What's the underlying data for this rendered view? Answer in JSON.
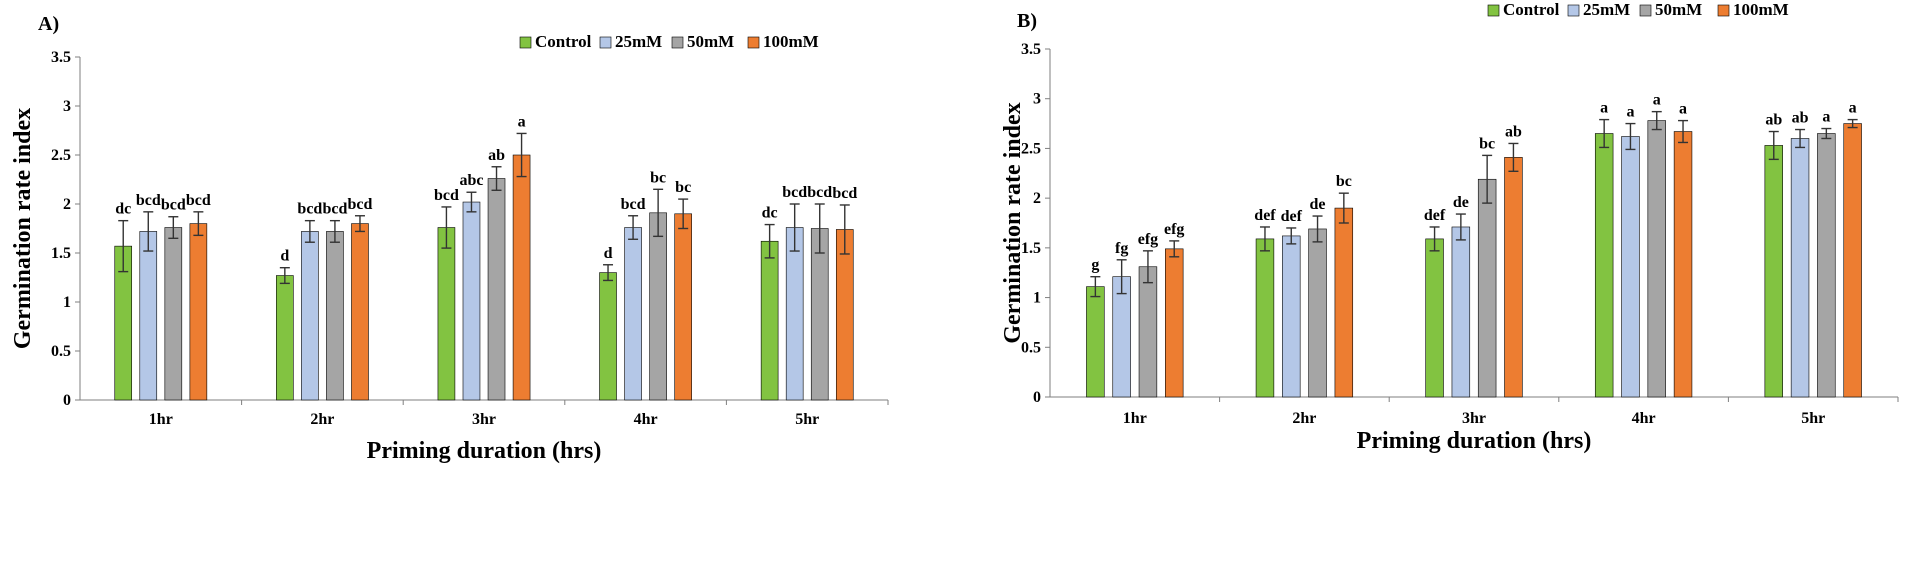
{
  "chart_data": [
    {
      "type": "bar",
      "panel": "A)",
      "categories": [
        "1hr",
        "2hr",
        "3hr",
        "4hr",
        "5hr"
      ],
      "xlabel": "Priming duration (hrs)",
      "ylabel": "Germination  rate index",
      "ylim": [
        0,
        3.5
      ],
      "yticks": [
        "0",
        "0.5",
        "1",
        "1.5",
        "2",
        "2.5",
        "3",
        "3.5"
      ],
      "legend_position": "top-right",
      "grid": false,
      "series": [
        {
          "name": "Control",
          "color": "#82c341",
          "values": [
            1.57,
            1.27,
            1.76,
            1.3,
            1.62
          ],
          "errors": [
            0.26,
            0.08,
            0.21,
            0.08,
            0.17
          ],
          "labels": [
            "dc",
            "d",
            "bcd",
            "d",
            "dc"
          ]
        },
        {
          "name": "25mM",
          "color": "#b4c7e7",
          "values": [
            1.72,
            1.72,
            2.02,
            1.76,
            1.76
          ],
          "errors": [
            0.2,
            0.11,
            0.1,
            0.12,
            0.24
          ],
          "labels": [
            "bcd",
            "bcd",
            "abc",
            "bcd",
            "bcd"
          ]
        },
        {
          "name": "50mM",
          "color": "#a5a5a5",
          "values": [
            1.76,
            1.72,
            2.26,
            1.91,
            1.75
          ],
          "errors": [
            0.11,
            0.11,
            0.12,
            0.24,
            0.25
          ],
          "labels": [
            "bcd",
            "bcd",
            "ab",
            "bc",
            "bcd"
          ]
        },
        {
          "name": "100mM",
          "color": "#ed7d31",
          "values": [
            1.8,
            1.8,
            2.5,
            1.9,
            1.74
          ],
          "errors": [
            0.12,
            0.08,
            0.22,
            0.15,
            0.25
          ],
          "labels": [
            "bcd",
            "bcd",
            "a",
            "bc",
            "bcd"
          ]
        }
      ]
    },
    {
      "type": "bar",
      "panel": "B)",
      "categories": [
        "1hr",
        "2hr",
        "3hr",
        "4hr",
        "5hr"
      ],
      "xlabel": "Priming duration (hrs)",
      "ylabel": "Germination  rate index",
      "ylim": [
        0,
        3.5
      ],
      "yticks": [
        "0",
        "0.5",
        "1",
        "1.5",
        "2",
        "2.5",
        "3",
        "3.5"
      ],
      "legend_position": "top-right",
      "grid": false,
      "series": [
        {
          "name": "Control",
          "color": "#82c341",
          "values": [
            1.11,
            1.59,
            1.59,
            2.65,
            2.53
          ],
          "errors": [
            0.1,
            0.12,
            0.12,
            0.14,
            0.14
          ],
          "labels": [
            "g",
            "def",
            "def",
            "a",
            "ab"
          ]
        },
        {
          "name": "25mM",
          "color": "#b4c7e7",
          "values": [
            1.21,
            1.62,
            1.71,
            2.62,
            2.6
          ],
          "errors": [
            0.17,
            0.08,
            0.13,
            0.13,
            0.09
          ],
          "labels": [
            "fg",
            "def",
            "de",
            "a",
            "ab"
          ]
        },
        {
          "name": "50mM",
          "color": "#a5a5a5",
          "values": [
            1.31,
            1.69,
            2.19,
            2.78,
            2.65
          ],
          "errors": [
            0.16,
            0.13,
            0.24,
            0.09,
            0.05
          ],
          "labels": [
            "efg",
            "de",
            "bc",
            "a",
            "a"
          ]
        },
        {
          "name": "100mM",
          "color": "#ed7d31",
          "values": [
            1.49,
            1.9,
            2.41,
            2.67,
            2.75
          ],
          "errors": [
            0.08,
            0.15,
            0.14,
            0.11,
            0.04
          ],
          "labels": [
            "efg",
            "bc",
            "ab",
            "a",
            "a"
          ]
        }
      ]
    }
  ]
}
